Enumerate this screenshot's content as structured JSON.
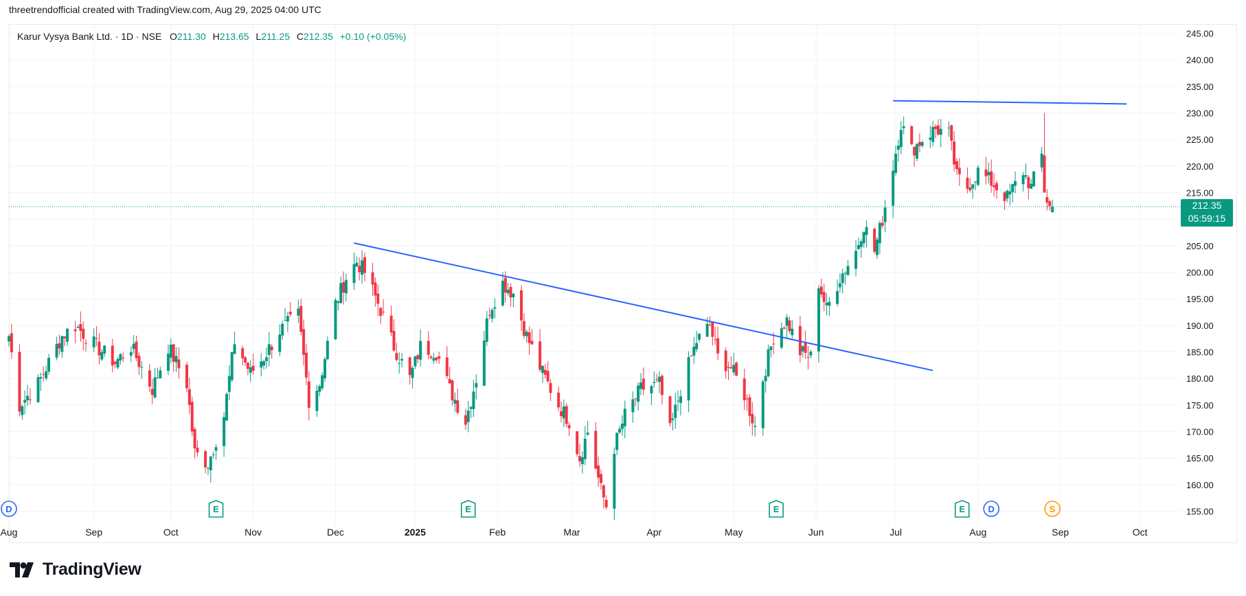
{
  "header": {
    "caption": "threetrendofficial created with TradingView.com, Aug 29, 2025 04:00 UTC"
  },
  "legend": {
    "symbol": "Karur Vysya Bank Ltd. · 1D · NSE",
    "open_label": "O",
    "open": "211.30",
    "high_label": "H",
    "high": "213.65",
    "low_label": "L",
    "low": "211.25",
    "close_label": "C",
    "close": "212.35",
    "change": "+0.10 (+0.05%)"
  },
  "price_tag": {
    "price": "212.35",
    "countdown": "05:59:15"
  },
  "branding": {
    "logo_text": "TradingView"
  },
  "colors": {
    "up": "#089981",
    "down": "#f23645",
    "trendline": "#2962ff",
    "grid": "#f0f3fa",
    "text": "#131722",
    "earnings": "#089981",
    "dividend": "#2962ff",
    "split": "#ff9800"
  },
  "chart_data": {
    "type": "candlestick",
    "symbol": "Karur Vysya Bank Ltd.",
    "interval": "1D",
    "exchange": "NSE",
    "ylim": [
      153,
      247
    ],
    "y_ticks": [
      "245.00",
      "240.00",
      "235.00",
      "230.00",
      "225.00",
      "220.00",
      "215.00",
      "210.00",
      "205.00",
      "200.00",
      "195.00",
      "190.00",
      "185.00",
      "180.00",
      "175.00",
      "170.00",
      "165.00",
      "160.00",
      "155.00"
    ],
    "x_ticks": [
      {
        "date": "2024-08-01",
        "label": "Aug"
      },
      {
        "date": "2024-09-02",
        "label": "Sep"
      },
      {
        "date": "2024-10-01",
        "label": "Oct"
      },
      {
        "date": "2024-11-01",
        "label": "Nov"
      },
      {
        "date": "2024-12-02",
        "label": "Dec"
      },
      {
        "date": "2025-01-01",
        "label": "2025",
        "bold": true
      },
      {
        "date": "2025-02-01",
        "label": "Feb"
      },
      {
        "date": "2025-03-01",
        "label": "Mar"
      },
      {
        "date": "2025-04-01",
        "label": "Apr"
      },
      {
        "date": "2025-05-01",
        "label": "May"
      },
      {
        "date": "2025-06-01",
        "label": "Jun"
      },
      {
        "date": "2025-07-01",
        "label": "Jul"
      },
      {
        "date": "2025-08-01",
        "label": "Aug"
      },
      {
        "date": "2025-09-01",
        "label": "Sep"
      },
      {
        "date": "2025-10-01",
        "label": "Oct"
      }
    ],
    "x_range": [
      "2024-08-01",
      "2025-10-06"
    ],
    "current_price": 212.35,
    "anchors": [
      {
        "date": "2024-08-01",
        "close": 188
      },
      {
        "date": "2024-08-05",
        "close": 175
      },
      {
        "date": "2024-08-12",
        "close": 179
      },
      {
        "date": "2024-08-21",
        "close": 188
      },
      {
        "date": "2024-08-26",
        "close": 190
      },
      {
        "date": "2024-09-03",
        "close": 186
      },
      {
        "date": "2024-09-10",
        "close": 183
      },
      {
        "date": "2024-09-16",
        "close": 186
      },
      {
        "date": "2024-09-24",
        "close": 178
      },
      {
        "date": "2024-09-30",
        "close": 186
      },
      {
        "date": "2024-10-07",
        "close": 179
      },
      {
        "date": "2024-10-10",
        "close": 166
      },
      {
        "date": "2024-10-15",
        "close": 164
      },
      {
        "date": "2024-10-21",
        "close": 173
      },
      {
        "date": "2024-10-25",
        "close": 187
      },
      {
        "date": "2024-10-31",
        "close": 181
      },
      {
        "date": "2024-11-05",
        "close": 184
      },
      {
        "date": "2024-11-11",
        "close": 189
      },
      {
        "date": "2024-11-18",
        "close": 192
      },
      {
        "date": "2024-11-22",
        "close": 176
      },
      {
        "date": "2024-11-26",
        "close": 179
      },
      {
        "date": "2024-12-02",
        "close": 194
      },
      {
        "date": "2024-12-06",
        "close": 199
      },
      {
        "date": "2024-12-10",
        "close": 202
      },
      {
        "date": "2024-12-13",
        "close": 200
      },
      {
        "date": "2024-12-19",
        "close": 193
      },
      {
        "date": "2024-12-24",
        "close": 186
      },
      {
        "date": "2024-12-30",
        "close": 180
      },
      {
        "date": "2025-01-03",
        "close": 186
      },
      {
        "date": "2025-01-09",
        "close": 185
      },
      {
        "date": "2025-01-14",
        "close": 178
      },
      {
        "date": "2025-01-20",
        "close": 172
      },
      {
        "date": "2025-01-24",
        "close": 180
      },
      {
        "date": "2025-01-29",
        "close": 193
      },
      {
        "date": "2025-02-03",
        "close": 198
      },
      {
        "date": "2025-02-07",
        "close": 196
      },
      {
        "date": "2025-02-12",
        "close": 188
      },
      {
        "date": "2025-02-18",
        "close": 181
      },
      {
        "date": "2025-02-24",
        "close": 175
      },
      {
        "date": "2025-02-28",
        "close": 172
      },
      {
        "date": "2025-03-04",
        "close": 165
      },
      {
        "date": "2025-03-07",
        "close": 170
      },
      {
        "date": "2025-03-12",
        "close": 159
      },
      {
        "date": "2025-03-14",
        "close": 156
      },
      {
        "date": "2025-03-17",
        "close": 167
      },
      {
        "date": "2025-03-21",
        "close": 173
      },
      {
        "date": "2025-03-27",
        "close": 178
      },
      {
        "date": "2025-04-03",
        "close": 179
      },
      {
        "date": "2025-04-07",
        "close": 170
      },
      {
        "date": "2025-04-11",
        "close": 178
      },
      {
        "date": "2025-04-17",
        "close": 187
      },
      {
        "date": "2025-04-22",
        "close": 190
      },
      {
        "date": "2025-04-25",
        "close": 184
      },
      {
        "date": "2025-04-30",
        "close": 182
      },
      {
        "date": "2025-05-05",
        "close": 177
      },
      {
        "date": "2025-05-09",
        "close": 171
      },
      {
        "date": "2025-05-12",
        "close": 180
      },
      {
        "date": "2025-05-16",
        "close": 188
      },
      {
        "date": "2025-05-21",
        "close": 191
      },
      {
        "date": "2025-05-26",
        "close": 185
      },
      {
        "date": "2025-05-30",
        "close": 184
      },
      {
        "date": "2025-06-02",
        "close": 198
      },
      {
        "date": "2025-06-05",
        "close": 193
      },
      {
        "date": "2025-06-10",
        "close": 199
      },
      {
        "date": "2025-06-16",
        "close": 204
      },
      {
        "date": "2025-06-19",
        "close": 209
      },
      {
        "date": "2025-06-23",
        "close": 204
      },
      {
        "date": "2025-06-26",
        "close": 210
      },
      {
        "date": "2025-06-30",
        "close": 220
      },
      {
        "date": "2025-07-03",
        "close": 228
      },
      {
        "date": "2025-07-07",
        "close": 223
      },
      {
        "date": "2025-07-11",
        "close": 225
      },
      {
        "date": "2025-07-16",
        "close": 227
      },
      {
        "date": "2025-07-21",
        "close": 226
      },
      {
        "date": "2025-07-24",
        "close": 218
      },
      {
        "date": "2025-07-28",
        "close": 216
      },
      {
        "date": "2025-08-01",
        "close": 219
      },
      {
        "date": "2025-08-06",
        "close": 217
      },
      {
        "date": "2025-08-12",
        "close": 214
      },
      {
        "date": "2025-08-18",
        "close": 219
      },
      {
        "date": "2025-08-21",
        "close": 216
      },
      {
        "date": "2025-08-25",
        "close": 222
      },
      {
        "date": "2025-08-26",
        "close": 215
      },
      {
        "date": "2025-08-28",
        "close": 212.25
      },
      {
        "date": "2025-08-29",
        "close": 212.35
      }
    ],
    "last_candle": {
      "date": "2025-08-29",
      "open": 211.3,
      "high": 213.65,
      "low": 211.25,
      "close": 212.35
    },
    "trendlines": [
      {
        "from": {
          "date": "2024-12-09",
          "price": 205.5
        },
        "to": {
          "date": "2025-07-15",
          "price": 181.5
        }
      },
      {
        "from": {
          "date": "2025-06-30",
          "price": 232.3
        },
        "to": {
          "date": "2025-09-26",
          "price": 231.7
        }
      }
    ],
    "events": [
      {
        "date": "2024-08-01",
        "kind": "dividend",
        "label": "D"
      },
      {
        "date": "2024-10-18",
        "kind": "earnings",
        "label": "E"
      },
      {
        "date": "2025-01-21",
        "kind": "earnings",
        "label": "E"
      },
      {
        "date": "2025-05-17",
        "kind": "earnings",
        "label": "E"
      },
      {
        "date": "2025-07-26",
        "kind": "earnings",
        "label": "E"
      },
      {
        "date": "2025-08-06",
        "kind": "dividend",
        "label": "D"
      },
      {
        "date": "2025-08-29",
        "kind": "split",
        "label": "S"
      }
    ]
  }
}
